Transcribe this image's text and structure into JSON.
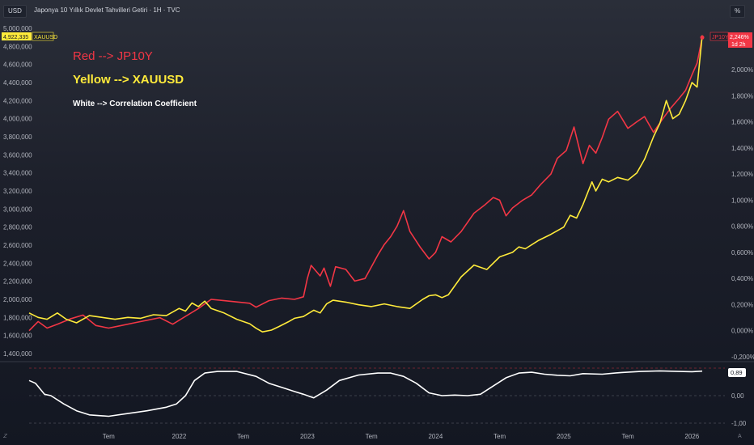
{
  "header": {
    "title": "Japonya 10 Yıllık Devlet Tahvilleri Getiri · 1H · TVC",
    "left_button": "USD",
    "right_button": "%"
  },
  "annotations": {
    "red": "Red --> JP10Y",
    "yellow": "Yellow --> XAUUSD",
    "white": "White --> Correlation Coefficient"
  },
  "badges": {
    "xau_value": "4,922,335",
    "xau_name": "XAUUSD",
    "jp_name": "JP10Y",
    "jp_value": "2,246%",
    "jp_time": "1d 2h",
    "corr_value": "0,89"
  },
  "colors": {
    "red": "#f23645",
    "yellow": "#ffeb3b",
    "white": "#ffffff"
  },
  "chart_data": [
    {
      "type": "line",
      "left_axis": {
        "ylim": [
          1400000,
          5000000
        ],
        "ticks": [
          "1,400,000",
          "1,600,000",
          "1,800,000",
          "2,000,000",
          "2,200,000",
          "2,400,000",
          "2,600,000",
          "2,800,000",
          "3,000,000",
          "3,200,000",
          "3,400,000",
          "3,600,000",
          "3,800,000",
          "4,000,000",
          "4,200,000",
          "4,400,000",
          "4,600,000",
          "4,800,000",
          "5,000,000"
        ]
      },
      "right_axis": {
        "ylim": [
          -0.2,
          2.4
        ],
        "ticks": [
          "-0,200%",
          "0,000%",
          "0,200%",
          "0,400%",
          "0,600%",
          "0,800%",
          "1,000%",
          "1,200%",
          "1,400%",
          "1,600%",
          "1,800%",
          "2,000%"
        ]
      },
      "x_ticks": [
        "Tem",
        "2022",
        "Tem",
        "2023",
        "Tem",
        "2024",
        "Tem",
        "2025",
        "Tem",
        "2026"
      ],
      "xlim": [
        2020.83,
        2026.08
      ],
      "series": [
        {
          "name": "JP10Y",
          "axis": "right",
          "x": [
            2020.83,
            2020.9,
            2020.97,
            2021.05,
            2021.15,
            2021.25,
            2021.35,
            2021.45,
            2021.55,
            2021.65,
            2021.75,
            2021.85,
            2021.95,
            2022.05,
            2022.15,
            2022.25,
            2022.35,
            2022.45,
            2022.55,
            2022.6,
            2022.7,
            2022.8,
            2022.9,
            2022.97,
            2023.0,
            2023.03,
            2023.1,
            2023.13,
            2023.18,
            2023.22,
            2023.3,
            2023.37,
            2023.45,
            2023.55,
            2023.6,
            2023.65,
            2023.7,
            2023.75,
            2023.8,
            2023.88,
            2023.95,
            2024.0,
            2024.05,
            2024.12,
            2024.2,
            2024.3,
            2024.38,
            2024.45,
            2024.5,
            2024.55,
            2024.6,
            2024.68,
            2024.75,
            2024.82,
            2024.9,
            2024.95,
            2025.02,
            2025.08,
            2025.15,
            2025.2,
            2025.25,
            2025.3,
            2025.35,
            2025.42,
            2025.5,
            2025.57,
            2025.63,
            2025.7,
            2025.77,
            2025.83,
            2025.9,
            2025.95,
            2026.0,
            2026.04,
            2026.08
          ],
          "values": [
            0.0,
            0.07,
            0.02,
            0.05,
            0.09,
            0.12,
            0.04,
            0.02,
            0.04,
            0.06,
            0.08,
            0.1,
            0.05,
            0.11,
            0.17,
            0.24,
            0.23,
            0.22,
            0.21,
            0.18,
            0.23,
            0.25,
            0.24,
            0.26,
            0.4,
            0.5,
            0.42,
            0.48,
            0.34,
            0.49,
            0.47,
            0.38,
            0.4,
            0.58,
            0.66,
            0.72,
            0.8,
            0.92,
            0.76,
            0.64,
            0.55,
            0.6,
            0.72,
            0.68,
            0.76,
            0.9,
            0.96,
            1.02,
            1.0,
            0.88,
            0.94,
            1.0,
            1.04,
            1.12,
            1.2,
            1.32,
            1.38,
            1.56,
            1.28,
            1.42,
            1.36,
            1.48,
            1.62,
            1.68,
            1.55,
            1.6,
            1.64,
            1.52,
            1.62,
            1.7,
            1.78,
            1.84,
            1.96,
            2.05,
            2.246
          ]
        },
        {
          "name": "XAUUSD",
          "axis": "left",
          "x": [
            2020.83,
            2020.9,
            2020.97,
            2021.05,
            2021.12,
            2021.2,
            2021.3,
            2021.4,
            2021.5,
            2021.6,
            2021.7,
            2021.8,
            2021.9,
            2022.0,
            2022.05,
            2022.1,
            2022.15,
            2022.2,
            2022.25,
            2022.35,
            2022.45,
            2022.55,
            2022.6,
            2022.65,
            2022.72,
            2022.78,
            2022.85,
            2022.9,
            2022.97,
            2023.05,
            2023.1,
            2023.15,
            2023.2,
            2023.3,
            2023.4,
            2023.5,
            2023.6,
            2023.7,
            2023.8,
            2023.9,
            2023.95,
            2024.0,
            2024.05,
            2024.1,
            2024.2,
            2024.3,
            2024.4,
            2024.5,
            2024.6,
            2024.65,
            2024.7,
            2024.8,
            2024.9,
            2025.0,
            2025.05,
            2025.1,
            2025.15,
            2025.22,
            2025.25,
            2025.3,
            2025.35,
            2025.42,
            2025.5,
            2025.57,
            2025.63,
            2025.7,
            2025.75,
            2025.8,
            2025.85,
            2025.9,
            2025.95,
            2026.0,
            2026.04,
            2026.08
          ],
          "values": [
            1850000,
            1800000,
            1780000,
            1850000,
            1780000,
            1740000,
            1820000,
            1800000,
            1780000,
            1800000,
            1790000,
            1830000,
            1820000,
            1900000,
            1870000,
            1960000,
            1920000,
            1980000,
            1900000,
            1850000,
            1780000,
            1730000,
            1680000,
            1640000,
            1660000,
            1700000,
            1750000,
            1790000,
            1810000,
            1880000,
            1850000,
            1950000,
            1990000,
            1970000,
            1940000,
            1920000,
            1950000,
            1920000,
            1900000,
            2000000,
            2040000,
            2050000,
            2020000,
            2050000,
            2250000,
            2380000,
            2330000,
            2470000,
            2520000,
            2580000,
            2560000,
            2650000,
            2720000,
            2800000,
            2930000,
            2900000,
            3050000,
            3300000,
            3200000,
            3330000,
            3300000,
            3350000,
            3320000,
            3400000,
            3550000,
            3800000,
            3950000,
            4200000,
            4000000,
            4050000,
            4200000,
            4400000,
            4350000,
            4922335
          ]
        }
      ]
    },
    {
      "type": "line",
      "name": "Correlation Coefficient",
      "ylim": [
        -1,
        1
      ],
      "ticks": [
        "-1,00",
        "0,00"
      ],
      "x": [
        2020.83,
        2020.88,
        2020.95,
        2021.0,
        2021.1,
        2021.2,
        2021.3,
        2021.45,
        2021.6,
        2021.75,
        2021.9,
        2021.98,
        2022.05,
        2022.12,
        2022.2,
        2022.3,
        2022.45,
        2022.6,
        2022.7,
        2022.8,
        2022.9,
        2022.97,
        2023.05,
        2023.15,
        2023.25,
        2023.4,
        2023.55,
        2023.65,
        2023.75,
        2023.85,
        2023.95,
        2024.05,
        2024.15,
        2024.25,
        2024.35,
        2024.45,
        2024.55,
        2024.65,
        2024.75,
        2024.85,
        2024.95,
        2025.05,
        2025.15,
        2025.3,
        2025.45,
        2025.6,
        2025.75,
        2025.9,
        2026.0,
        2026.08
      ],
      "values": [
        0.55,
        0.45,
        0.05,
        0.0,
        -0.3,
        -0.55,
        -0.7,
        -0.75,
        -0.65,
        -0.55,
        -0.42,
        -0.3,
        0.0,
        0.55,
        0.82,
        0.88,
        0.88,
        0.7,
        0.45,
        0.3,
        0.15,
        0.05,
        -0.08,
        0.2,
        0.55,
        0.75,
        0.82,
        0.82,
        0.7,
        0.45,
        0.1,
        0.0,
        0.02,
        0.0,
        0.05,
        0.35,
        0.65,
        0.82,
        0.85,
        0.78,
        0.74,
        0.72,
        0.8,
        0.78,
        0.84,
        0.88,
        0.9,
        0.88,
        0.87,
        0.89
      ]
    }
  ]
}
